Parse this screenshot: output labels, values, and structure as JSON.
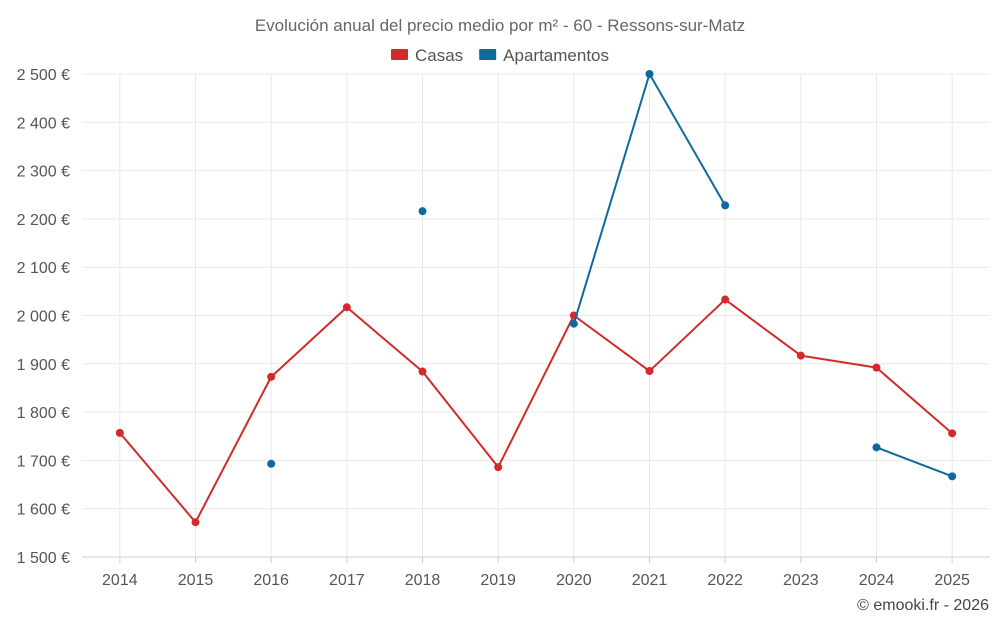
{
  "chart_data": {
    "type": "line",
    "title": "Evolución anual del precio medio por m² - 60 - Ressons-sur-Matz",
    "categories": [
      "2014",
      "2015",
      "2016",
      "2017",
      "2018",
      "2019",
      "2020",
      "2021",
      "2022",
      "2023",
      "2024",
      "2025"
    ],
    "ylim": [
      1500,
      2500
    ],
    "yticks": [
      1500,
      1600,
      1700,
      1800,
      1900,
      2000,
      2100,
      2200,
      2300,
      2400,
      2500
    ],
    "ytick_labels": [
      "1 500 €",
      "1 600 €",
      "1 700 €",
      "1 800 €",
      "1 900 €",
      "2 000 €",
      "2 100 €",
      "2 200 €",
      "2 300 €",
      "2 400 €",
      "2 500 €"
    ],
    "grid": true,
    "legend_position": "top-center",
    "series": [
      {
        "name": "Casas",
        "color": "#d32a2a",
        "values": [
          1757,
          1572,
          1873,
          2017,
          1884,
          1686,
          2000,
          1885,
          2033,
          1917,
          1892,
          1756
        ]
      },
      {
        "name": "Apartamentos",
        "color": "#0f6a9b",
        "values": [
          null,
          null,
          1693,
          null,
          2216,
          null,
          1983,
          2500,
          2228,
          null,
          1727,
          1667
        ]
      }
    ],
    "copyright": "© emooki.fr - 2026"
  }
}
